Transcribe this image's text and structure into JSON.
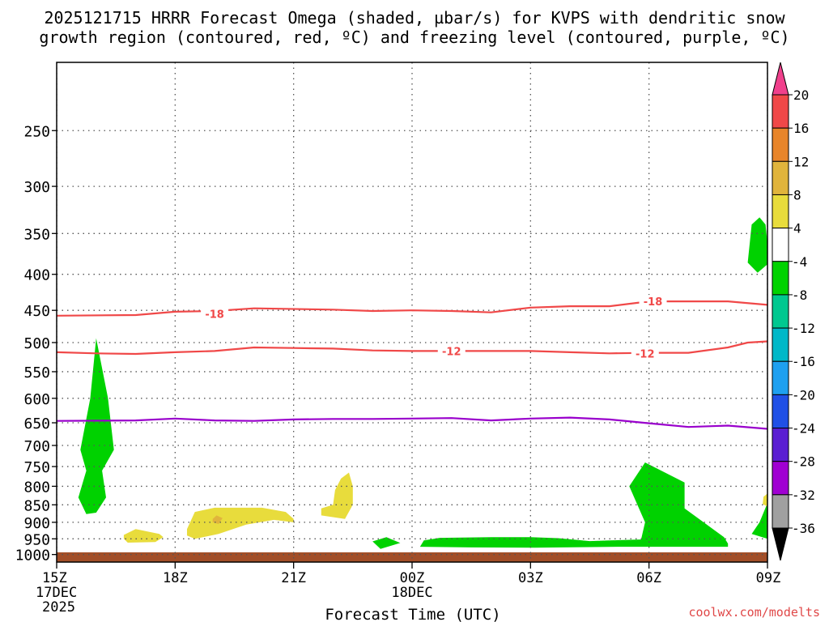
{
  "chart_data": {
    "type": "contour",
    "title_line1": "2025121715 HRRR Forecast Omega (shaded, µbar/s) for KVPS with dendritic snow",
    "title_line2": "growth region (contoured, red, ºC) and freezing level (contoured, purple, ºC)",
    "xlabel": "Forecast Time (UTC)",
    "ylabel": "",
    "watermark": "coolwx.com/modelts",
    "x_ticks": [
      {
        "label": "15Z",
        "sub1": "17DEC",
        "sub2": "2025",
        "hour": 0
      },
      {
        "label": "18Z",
        "sub1": "",
        "sub2": "",
        "hour": 3
      },
      {
        "label": "21Z",
        "sub1": "",
        "sub2": "",
        "hour": 6
      },
      {
        "label": "00Z",
        "sub1": "18DEC",
        "sub2": "",
        "hour": 9
      },
      {
        "label": "03Z",
        "sub1": "",
        "sub2": "",
        "hour": 12
      },
      {
        "label": "06Z",
        "sub1": "",
        "sub2": "",
        "hour": 15
      },
      {
        "label": "09Z",
        "sub1": "",
        "sub2": "",
        "hour": 18
      }
    ],
    "y_ticks": [
      "250",
      "300",
      "350",
      "400",
      "450",
      "500",
      "550",
      "600",
      "650",
      "700",
      "750",
      "800",
      "850",
      "900",
      "950",
      "1000"
    ],
    "xlim": [
      0,
      18
    ],
    "ylim_hpa": [
      1025,
      200
    ],
    "contours": [
      {
        "name": "-18",
        "color": "#f04848",
        "label": "-18",
        "points": [
          [
            0,
            458
          ],
          [
            2,
            457
          ],
          [
            3,
            452
          ],
          [
            4,
            451
          ],
          [
            5,
            447
          ],
          [
            7,
            449
          ],
          [
            8,
            451
          ],
          [
            9,
            450
          ],
          [
            10,
            451
          ],
          [
            11,
            453
          ],
          [
            12,
            446
          ],
          [
            13,
            444
          ],
          [
            14,
            444
          ],
          [
            15,
            437
          ],
          [
            16,
            437
          ],
          [
            17,
            437
          ],
          [
            18,
            442
          ]
        ],
        "labels_at": [
          [
            4,
            455
          ],
          [
            15.1,
            437
          ]
        ]
      },
      {
        "name": "-12",
        "color": "#f04848",
        "label": "-12",
        "points": [
          [
            0,
            516
          ],
          [
            1,
            518
          ],
          [
            2,
            519
          ],
          [
            3,
            516
          ],
          [
            4,
            514
          ],
          [
            5,
            508
          ],
          [
            6,
            509
          ],
          [
            7,
            510
          ],
          [
            8,
            513
          ],
          [
            9,
            514
          ],
          [
            10,
            514
          ],
          [
            11,
            514
          ],
          [
            12,
            514
          ],
          [
            13,
            516
          ],
          [
            14,
            518
          ],
          [
            15,
            517
          ],
          [
            16,
            517
          ],
          [
            17,
            508
          ],
          [
            17.5,
            500
          ],
          [
            18,
            498
          ]
        ],
        "labels_at": [
          [
            10,
            514
          ],
          [
            14.9,
            518
          ]
        ]
      },
      {
        "name": "freezing-level-0C",
        "color": "#9900cc",
        "label": "",
        "points": [
          [
            0,
            646
          ],
          [
            2,
            645
          ],
          [
            3,
            641
          ],
          [
            4,
            645
          ],
          [
            5,
            646
          ],
          [
            6,
            643
          ],
          [
            7,
            642
          ],
          [
            8,
            642
          ],
          [
            9,
            641
          ],
          [
            10,
            640
          ],
          [
            11,
            645
          ],
          [
            12,
            641
          ],
          [
            13,
            639
          ],
          [
            14,
            643
          ],
          [
            15,
            651
          ],
          [
            16,
            659
          ],
          [
            17,
            656
          ],
          [
            18,
            663
          ]
        ],
        "labels_at": []
      }
    ],
    "shaded_regions": [
      {
        "name": "green-column-15z",
        "value_range": "-8 to -4",
        "color": "#00d200",
        "points": [
          [
            1.0,
            493
          ],
          [
            0.85,
            600
          ],
          [
            0.6,
            710
          ],
          [
            0.75,
            760
          ],
          [
            0.55,
            830
          ],
          [
            0.75,
            876
          ],
          [
            1.0,
            872
          ],
          [
            1.25,
            830
          ],
          [
            1.15,
            760
          ],
          [
            1.45,
            710
          ],
          [
            1.3,
            600
          ]
        ]
      },
      {
        "name": "green-blob-2350z",
        "value_range": "-8 to -4",
        "color": "#00d200",
        "points": [
          [
            8.0,
            958
          ],
          [
            8.35,
            945
          ],
          [
            8.7,
            963
          ],
          [
            8.2,
            982
          ]
        ]
      },
      {
        "name": "green-lowlevel-01z-07z",
        "value_range": "-8 to -4",
        "color": "#00d200",
        "points": [
          [
            9.3,
            955
          ],
          [
            9.7,
            947
          ],
          [
            11.0,
            945
          ],
          [
            12.0,
            945
          ],
          [
            12.7,
            948
          ],
          [
            13.5,
            957
          ],
          [
            14.0,
            955
          ],
          [
            14.8,
            952
          ],
          [
            14.9,
            900
          ],
          [
            14.5,
            800
          ],
          [
            14.9,
            740
          ],
          [
            15.9,
            790
          ],
          [
            15.9,
            860
          ],
          [
            16.9,
            945
          ],
          [
            17.0,
            965
          ],
          [
            17.0,
            975
          ],
          [
            14.3,
            975
          ],
          [
            12.1,
            978
          ],
          [
            10.5,
            977
          ],
          [
            9.2,
            975
          ]
        ]
      },
      {
        "name": "green-blob-08z-upper",
        "value_range": "-8 to -4",
        "color": "#00d200",
        "points": [
          [
            17.8,
            332
          ],
          [
            17.95,
            340
          ],
          [
            18.05,
            385
          ],
          [
            17.75,
            398
          ],
          [
            17.5,
            385
          ],
          [
            17.6,
            340
          ]
        ]
      },
      {
        "name": "green-edge-09z",
        "value_range": "-8 to -4",
        "color": "#00d200",
        "points": [
          [
            18.0,
            845
          ],
          [
            17.8,
            900
          ],
          [
            17.6,
            935
          ],
          [
            18.0,
            950
          ]
        ]
      },
      {
        "name": "yellow-blob-17z",
        "value_range": "4 to 8",
        "color": "#e8dc3c",
        "points": [
          [
            1.7,
            938
          ],
          [
            2.0,
            920
          ],
          [
            2.6,
            935
          ],
          [
            2.7,
            945
          ],
          [
            2.5,
            960
          ],
          [
            1.8,
            962
          ],
          [
            1.7,
            950
          ]
        ]
      },
      {
        "name": "yellow-blob-18z-20z",
        "value_range": "4 to 8",
        "color": "#e8dc3c",
        "points": [
          [
            3.3,
            920
          ],
          [
            3.5,
            870
          ],
          [
            4.0,
            858
          ],
          [
            5.2,
            858
          ],
          [
            5.8,
            870
          ],
          [
            6.0,
            890
          ],
          [
            6.0,
            900
          ],
          [
            5.5,
            893
          ],
          [
            4.8,
            907
          ],
          [
            4.1,
            935
          ],
          [
            3.5,
            950
          ],
          [
            3.3,
            940
          ]
        ]
      },
      {
        "name": "yellow-blob-22z",
        "value_range": "4 to 8",
        "color": "#e8dc3c",
        "points": [
          [
            7.2,
            780
          ],
          [
            7.4,
            765
          ],
          [
            7.5,
            800
          ],
          [
            7.5,
            850
          ],
          [
            7.3,
            890
          ],
          [
            6.7,
            880
          ],
          [
            6.7,
            860
          ],
          [
            7.0,
            850
          ],
          [
            7.05,
            810
          ]
        ]
      },
      {
        "name": "yellow-blob-08z",
        "value_range": "4 to 8",
        "color": "#e8dc3c",
        "points": [
          [
            17.9,
            828
          ],
          [
            18.05,
            815
          ],
          [
            18.12,
            835
          ],
          [
            18.0,
            855
          ],
          [
            17.88,
            848
          ]
        ]
      },
      {
        "name": "orange-dot-19z",
        "value_range": "8 to 12",
        "color": "#e0b43c",
        "points": [
          [
            3.95,
            890
          ],
          [
            4.05,
            880
          ],
          [
            4.2,
            888
          ],
          [
            4.1,
            905
          ],
          [
            3.95,
            900
          ]
        ]
      }
    ],
    "terrain": {
      "name": "ground",
      "color": "#a24e28",
      "label": "surface"
    },
    "colorbar": {
      "ticks": [
        "20",
        "16",
        "12",
        "8",
        "4",
        "-4",
        "-8",
        "-12",
        "-16",
        "-20",
        "-24",
        "-28",
        "-32",
        "-36"
      ],
      "colors": [
        "#f0408c",
        "#f04848",
        "#e8852a",
        "#e0b43c",
        "#e8dc3c",
        "#ffffff",
        "#00d200",
        "#00c890",
        "#00b8c8",
        "#1ea0f0",
        "#2050e6",
        "#5a1ed2",
        "#a000d2",
        "#a0a0a0",
        "#000000"
      ]
    }
  }
}
